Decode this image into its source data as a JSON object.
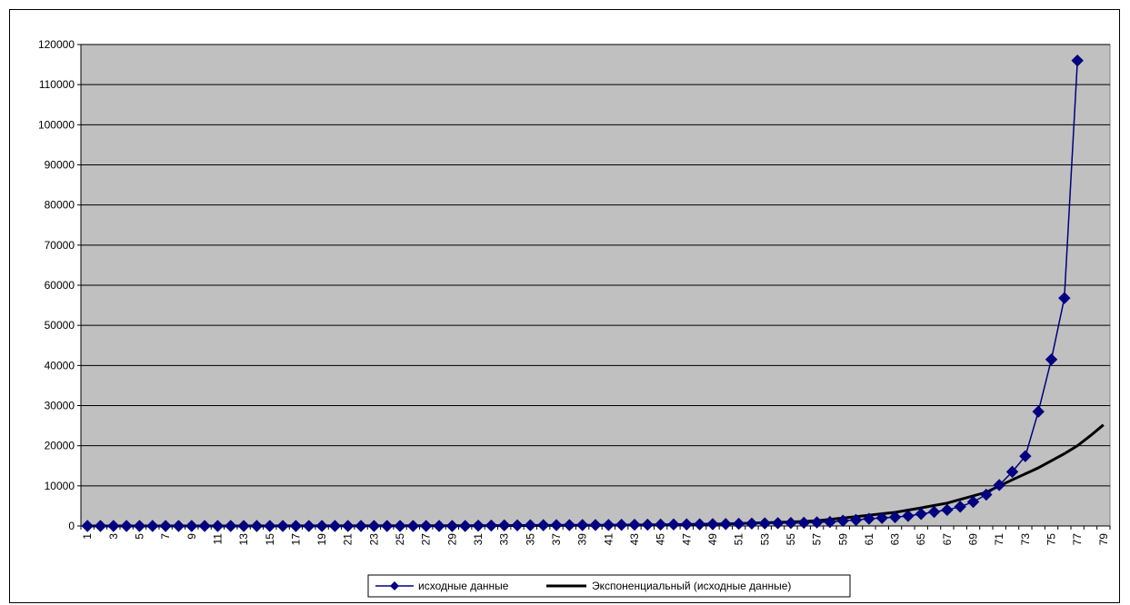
{
  "chart_data": {
    "type": "line",
    "title": "",
    "xlabel": "",
    "ylabel": "",
    "grid": true,
    "legend_position": "bottom",
    "plot_background": "#c0c0c0",
    "ylim": [
      0,
      120000
    ],
    "y_ticks": [
      0,
      10000,
      20000,
      30000,
      40000,
      50000,
      60000,
      70000,
      80000,
      90000,
      100000,
      110000,
      120000
    ],
    "x_categories": [
      1,
      79
    ],
    "x_tick_labels": [
      "1",
      "3",
      "5",
      "7",
      "9",
      "11",
      "13",
      "15",
      "17",
      "19",
      "21",
      "23",
      "25",
      "27",
      "29",
      "31",
      "33",
      "35",
      "37",
      "39",
      "41",
      "43",
      "45",
      "47",
      "49",
      "51",
      "53",
      "55",
      "57",
      "59",
      "61",
      "63",
      "65",
      "67",
      "69",
      "71",
      "73",
      "75",
      "77",
      "79"
    ],
    "series": [
      {
        "name": "исходные данные",
        "color": "#000080",
        "marker": "diamond",
        "x": [
          1,
          2,
          3,
          4,
          5,
          6,
          7,
          8,
          9,
          10,
          11,
          12,
          13,
          14,
          15,
          16,
          17,
          18,
          19,
          20,
          21,
          22,
          23,
          24,
          25,
          26,
          27,
          28,
          29,
          30,
          31,
          32,
          33,
          34,
          35,
          36,
          37,
          38,
          39,
          40,
          41,
          42,
          43,
          44,
          45,
          46,
          47,
          48,
          49,
          50,
          51,
          52,
          53,
          54,
          55,
          56,
          57,
          58,
          59,
          60,
          61,
          62,
          63,
          64,
          65,
          66,
          67,
          68,
          69,
          70,
          71,
          72,
          73,
          74,
          75,
          76,
          77
        ],
        "y": [
          0,
          0,
          0,
          0,
          0,
          0,
          0,
          0,
          0,
          0,
          0,
          0,
          0,
          0,
          0,
          0,
          0,
          0,
          0,
          0,
          0,
          0,
          0,
          0,
          0,
          0,
          0,
          0,
          0,
          0,
          80,
          100,
          150,
          160,
          180,
          200,
          210,
          220,
          230,
          240,
          250,
          280,
          300,
          320,
          350,
          380,
          400,
          420,
          450,
          480,
          550,
          600,
          650,
          700,
          750,
          800,
          900,
          1000,
          1300,
          1500,
          1800,
          2000,
          2200,
          2500,
          3000,
          3500,
          4000,
          4800,
          6000,
          7800,
          10200,
          13500,
          17400,
          28500,
          41500,
          56800,
          116000
        ]
      },
      {
        "name": "Экспоненциальный (исходные данные)",
        "color": "#000000",
        "type": "exponential_trend",
        "x": [
          1,
          10,
          20,
          30,
          40,
          45,
          50,
          55,
          57,
          60,
          63,
          65,
          67,
          70,
          72,
          74,
          76,
          77,
          78,
          79
        ],
        "y": [
          0,
          5,
          20,
          60,
          180,
          300,
          520,
          1000,
          1300,
          2300,
          3400,
          4500,
          5700,
          8400,
          11500,
          14500,
          18000,
          20000,
          22500,
          25200
        ]
      }
    ]
  }
}
